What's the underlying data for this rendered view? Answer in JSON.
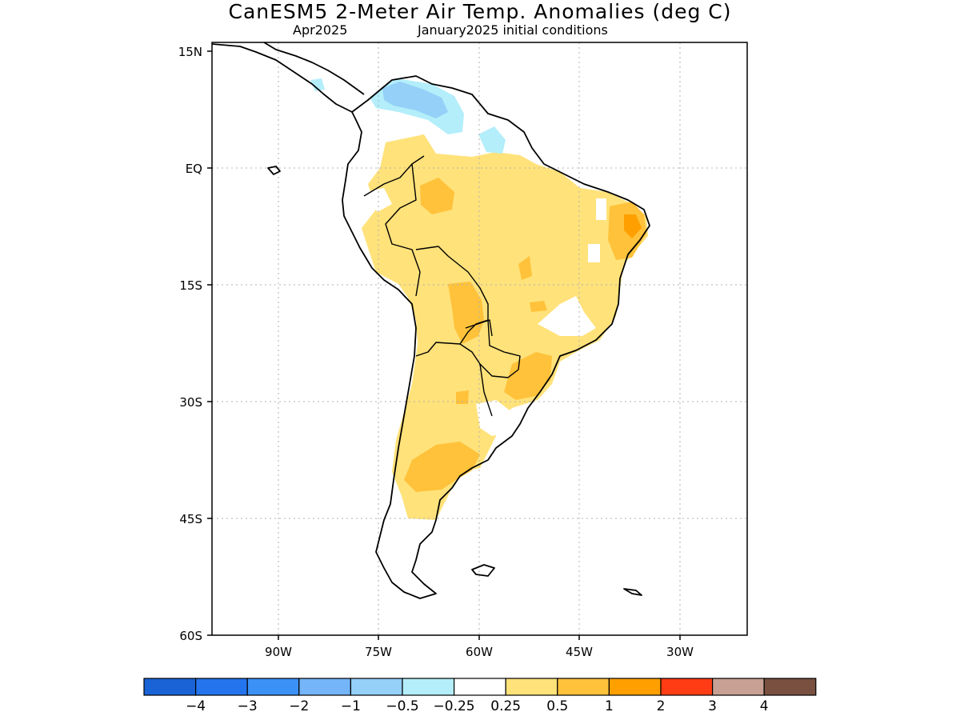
{
  "header": {
    "title": "CanESM5 2-Meter Air Temp. Anomalies (deg C)",
    "month": "Apr2025",
    "init": "January2025 initial conditions"
  },
  "map": {
    "lat_labels": [
      "15N",
      "EQ",
      "15S",
      "30S",
      "45S",
      "60S"
    ],
    "lon_labels": [
      "90W",
      "75W",
      "60W",
      "45W",
      "30W"
    ],
    "gridlines": "dotted"
  },
  "colorbar": {
    "colors": [
      "#1a63d6",
      "#2474ee",
      "#3c91f6",
      "#74b4f8",
      "#94d0f8",
      "#b3eefa",
      "#ffffff",
      "#ffe27a",
      "#ffc23a",
      "#ffa000",
      "#ff3c14",
      "#c8a094",
      "#7a5040"
    ],
    "labels": [
      "−4",
      "−3",
      "−2",
      "−1",
      "−0.5",
      "−0.25",
      "0.25",
      "0.5",
      "1",
      "2",
      "3",
      "4"
    ]
  }
}
